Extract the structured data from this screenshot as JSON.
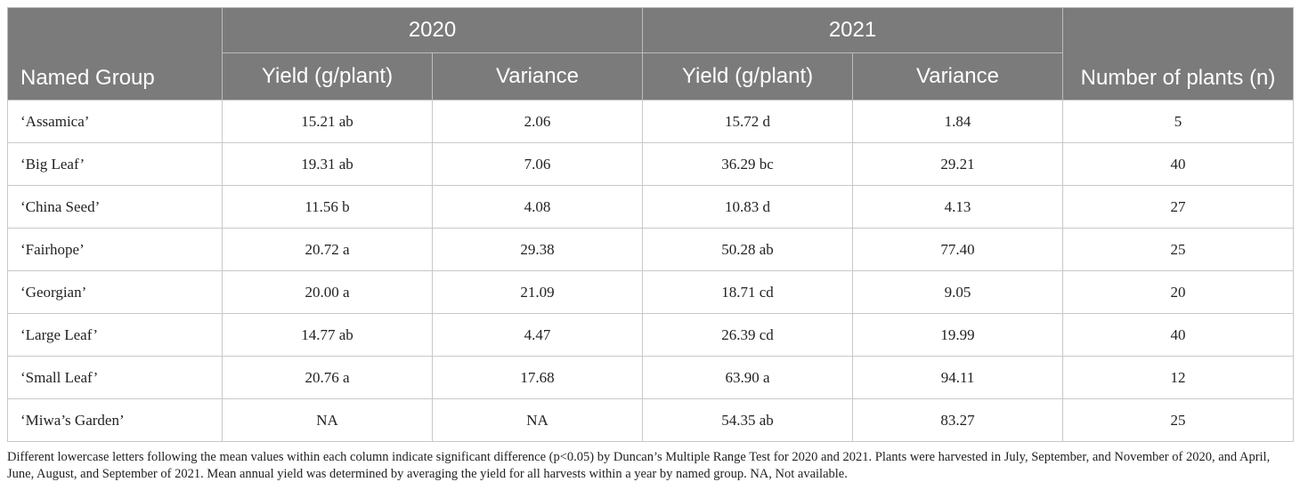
{
  "header": {
    "named_group": "Named Group",
    "year_2020": "2020",
    "year_2021": "2021",
    "yield": "Yield (g/plant)",
    "variance": "Variance",
    "n_plants": "Number of plants (n)"
  },
  "rows": [
    {
      "name": "‘Assamica’",
      "y2020": "15.21 ab",
      "v2020": "2.06",
      "y2021": "15.72 d",
      "v2021": "1.84",
      "n": "5"
    },
    {
      "name": "‘Big Leaf’",
      "y2020": "19.31 ab",
      "v2020": "7.06",
      "y2021": "36.29 bc",
      "v2021": "29.21",
      "n": "40"
    },
    {
      "name": "‘China Seed’",
      "y2020": "11.56 b",
      "v2020": "4.08",
      "y2021": "10.83 d",
      "v2021": "4.13",
      "n": "27"
    },
    {
      "name": "‘Fairhope’",
      "y2020": "20.72 a",
      "v2020": "29.38",
      "y2021": "50.28 ab",
      "v2021": "77.40",
      "n": "25"
    },
    {
      "name": "‘Georgian’",
      "y2020": "20.00 a",
      "v2020": "21.09",
      "y2021": "18.71 cd",
      "v2021": "9.05",
      "n": "20"
    },
    {
      "name": "‘Large Leaf’",
      "y2020": "14.77 ab",
      "v2020": "4.47",
      "y2021": "26.39 cd",
      "v2021": "19.99",
      "n": "40"
    },
    {
      "name": "‘Small Leaf’",
      "y2020": "20.76 a",
      "v2020": "17.68",
      "y2021": "63.90 a",
      "v2021": "94.11",
      "n": "12"
    },
    {
      "name": "‘Miwa’s Garden’",
      "y2020": "NA",
      "v2020": "NA",
      "y2021": "54.35 ab",
      "v2021": "83.27",
      "n": "25"
    }
  ],
  "footnote": "Different lowercase letters following the mean values within each column indicate significant difference (p<0.05) by Duncan’s Multiple Range Test for 2020 and 2021. Plants were harvested in July, September, and November of 2020, and April, June, August, and September of 2021. Mean annual yield was determined by averaging the yield for all harvests within a year by named group. NA, Not available.",
  "colors": {
    "header_bg": "#7b7b7b",
    "header_text": "#ffffff",
    "border": "#c8c8c8"
  }
}
